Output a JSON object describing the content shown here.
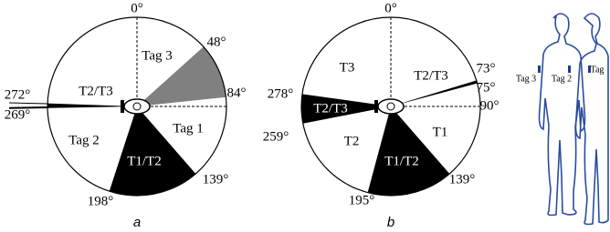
{
  "panels": [
    {
      "caption": "a",
      "labels": [
        "0°",
        "48°",
        "84°",
        "Tag 3",
        "Tag 1",
        "Tag 2",
        "T1/T2",
        "T2/T3",
        "272°",
        "269°",
        "139°",
        "198°"
      ]
    },
    {
      "caption": "b",
      "labels": [
        "0°",
        "T3",
        "T2/T3",
        "73°",
        "75°",
        "90°",
        "278°",
        "T2/T3",
        "259°",
        "T2",
        "T1",
        "T1/T2",
        "139°",
        "195°"
      ]
    }
  ],
  "figure": {
    "tags": [
      "Tag 3",
      "Tag 2",
      "Tag"
    ]
  }
}
